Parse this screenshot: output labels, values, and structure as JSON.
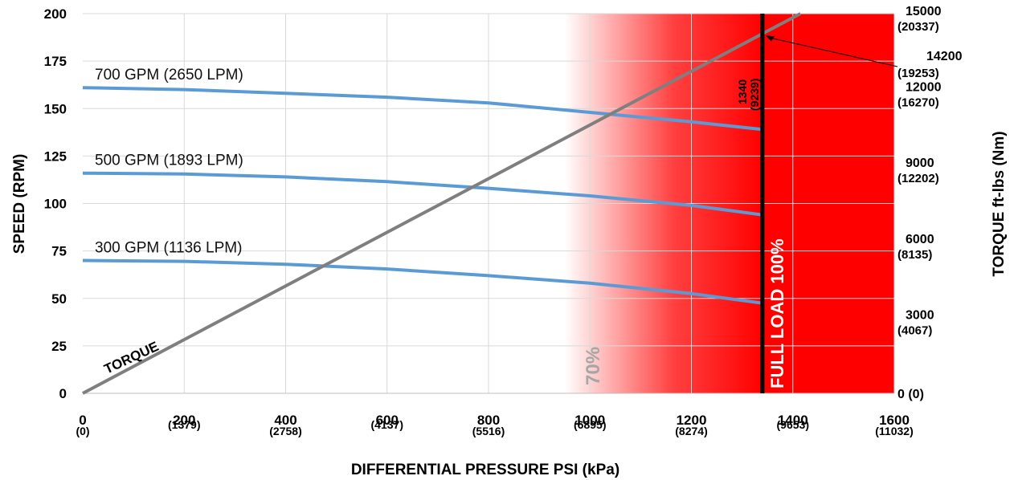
{
  "chart_data": {
    "type": "line",
    "xlabel": "DIFFERENTIAL PRESSURE PSI (kPa)",
    "ylabel": "SPEED (RPM)",
    "y2label": "TORQUE ft-lbs (Nm)",
    "xlim": [
      0,
      1600
    ],
    "ylim": [
      0,
      200
    ],
    "y2lim": [
      0,
      15000
    ],
    "grid": true,
    "x_ticks": [
      {
        "value": 0,
        "label": "0",
        "sub": "(0)"
      },
      {
        "value": 200,
        "label": "200",
        "sub": "(1379)"
      },
      {
        "value": 400,
        "label": "400",
        "sub": "(2758)"
      },
      {
        "value": 600,
        "label": "600",
        "sub": "(4137)"
      },
      {
        "value": 800,
        "label": "800",
        "sub": "(5516)"
      },
      {
        "value": 1000,
        "label": "1000",
        "sub": "(6895)"
      },
      {
        "value": 1200,
        "label": "1200",
        "sub": "(8274)"
      },
      {
        "value": 1400,
        "label": "1400",
        "sub": "(9653)"
      },
      {
        "value": 1600,
        "label": "1600",
        "sub": "(11032)"
      }
    ],
    "y_ticks": [
      {
        "value": 0,
        "label": "0"
      },
      {
        "value": 25,
        "label": "25"
      },
      {
        "value": 50,
        "label": "50"
      },
      {
        "value": 75,
        "label": "75"
      },
      {
        "value": 100,
        "label": "100"
      },
      {
        "value": 125,
        "label": "125"
      },
      {
        "value": 150,
        "label": "150"
      },
      {
        "value": 175,
        "label": "175"
      },
      {
        "value": 200,
        "label": "200"
      }
    ],
    "y2_ticks": [
      {
        "value": 0,
        "label": "0 (0)",
        "sub": ""
      },
      {
        "value": 3000,
        "label": "3000",
        "sub": "(4067)"
      },
      {
        "value": 6000,
        "label": "6000",
        "sub": "(8135)"
      },
      {
        "value": 9000,
        "label": "9000",
        "sub": "(12202)"
      },
      {
        "value": 12000,
        "label": "12000",
        "sub": "(16270)"
      },
      {
        "value": 15000,
        "label": "15000",
        "sub": "(20337)"
      }
    ],
    "series": [
      {
        "name": "700 GPM (2650 LPM)",
        "color": "#5b9bd5",
        "x": [
          0,
          200,
          400,
          600,
          800,
          1000,
          1200,
          1340
        ],
        "y": [
          161,
          160,
          158,
          156,
          153,
          148,
          143,
          139
        ]
      },
      {
        "name": "500 GPM (1893 LPM)",
        "color": "#5b9bd5",
        "x": [
          0,
          200,
          400,
          600,
          800,
          1000,
          1200,
          1340
        ],
        "y": [
          116,
          115.5,
          114,
          111.5,
          108,
          104,
          99,
          94
        ]
      },
      {
        "name": "300 GPM (1136 LPM)",
        "color": "#5b9bd5",
        "x": [
          0,
          200,
          400,
          600,
          800,
          1000,
          1200,
          1340
        ],
        "y": [
          70,
          69.5,
          68,
          65.5,
          62,
          58,
          52.5,
          47.5
        ]
      },
      {
        "name": "TORQUE",
        "color": "#7f7f7f",
        "axis": "right",
        "x": [
          0,
          1415
        ],
        "y": [
          0,
          15000
        ]
      }
    ],
    "full_load": {
      "x": 1340,
      "label": "FULL LOAD 100%",
      "value_label": "1340",
      "value_sub": "(9239)"
    },
    "seventy_pct": {
      "label": "70%",
      "gradient_start_x": 950
    },
    "annotation": {
      "label": "14200",
      "sub": "(19253)",
      "point_x": 1340,
      "point_y2": 14200
    }
  }
}
